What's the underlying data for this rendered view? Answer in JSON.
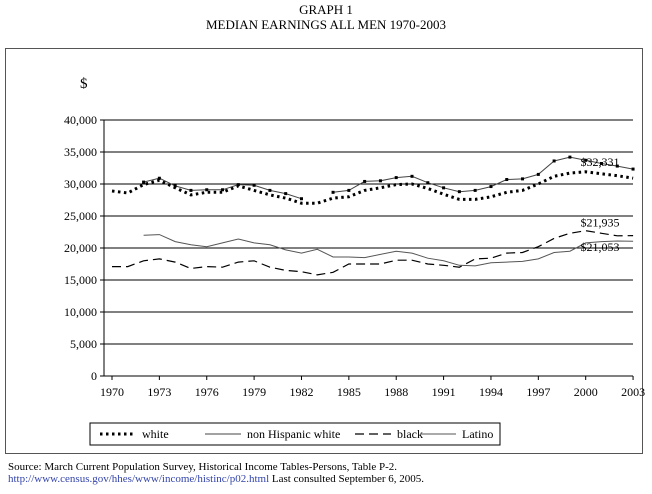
{
  "title_line1": "GRAPH 1",
  "title_line2": "MEDIAN EARNINGS ALL MEN 1970-2003",
  "chart_data": {
    "type": "line",
    "title": "MEDIAN EARNINGS ALL MEN 1970-2003",
    "ylabel": "$",
    "xlabel": "",
    "ylim": [
      0,
      40000
    ],
    "y_ticks": [
      "0",
      "5,000",
      "10,000",
      "15,000",
      "20,000",
      "25,000",
      "30,000",
      "35,000",
      "40,000"
    ],
    "x_tick_labels": [
      "1970",
      "1973",
      "1976",
      "1979",
      "1982",
      "1985",
      "1988",
      "1991",
      "1994",
      "1997",
      "2000",
      "2003"
    ],
    "grid": "horizontal",
    "legend_position": "bottom",
    "x": [
      1970,
      1971,
      1972,
      1973,
      1974,
      1975,
      1976,
      1977,
      1978,
      1979,
      1980,
      1981,
      1982,
      1983,
      1984,
      1985,
      1986,
      1987,
      1988,
      1989,
      1990,
      1991,
      1992,
      1993,
      1994,
      1995,
      1996,
      1997,
      1998,
      1999,
      2000,
      2001,
      2002,
      2003
    ],
    "series": [
      {
        "name": "white",
        "style": "dotted",
        "values": [
          28900,
          28600,
          29900,
          30600,
          29400,
          28300,
          28700,
          28700,
          29700,
          29000,
          28300,
          27800,
          27000,
          27000,
          27800,
          28000,
          29000,
          29400,
          29900,
          30000,
          29300,
          28400,
          27600,
          27600,
          28000,
          28700,
          29000,
          30000,
          31200,
          31700,
          31900,
          31600,
          31300,
          30900
        ]
      },
      {
        "name": "non Hispanic white",
        "style": "solid-markers",
        "values": [
          null,
          null,
          30300,
          30900,
          29700,
          29000,
          29100,
          29100,
          29900,
          29800,
          29000,
          28500,
          27700,
          null,
          28700,
          29000,
          30400,
          30500,
          31000,
          31200,
          30200,
          29400,
          28800,
          29000,
          29600,
          30700,
          30800,
          31500,
          33600,
          34200,
          33700,
          33200,
          32800,
          32331
        ]
      },
      {
        "name": "black",
        "style": "dashed",
        "values": [
          17100,
          17100,
          18000,
          18300,
          17800,
          16800,
          17100,
          17000,
          17800,
          18000,
          17000,
          16500,
          16300,
          15800,
          16200,
          17500,
          17500,
          17500,
          18100,
          18100,
          17500,
          17300,
          17000,
          18300,
          18400,
          19200,
          19300,
          20200,
          21500,
          22300,
          22700,
          22300,
          21900,
          21935
        ]
      },
      {
        "name": "Latino",
        "style": "solid",
        "values": [
          null,
          null,
          22000,
          22100,
          21000,
          20500,
          20200,
          20800,
          21400,
          20800,
          20500,
          19700,
          19200,
          19800,
          18600,
          18600,
          18500,
          19000,
          19500,
          19200,
          18400,
          18000,
          17300,
          17200,
          17700,
          17800,
          17900,
          18300,
          19300,
          19500,
          20800,
          21000,
          21100,
          21053
        ]
      }
    ],
    "annotations": [
      "$32,331",
      "$21,935",
      "$21,053"
    ]
  },
  "source": {
    "text": "Source: March Current Population Survey, Historical Income Tables-Persons, Table P-2. ",
    "link": "http://www.census.gov/hhes/www/income/histinc/p02.html",
    "after": " Last consulted September 6, 2005."
  }
}
